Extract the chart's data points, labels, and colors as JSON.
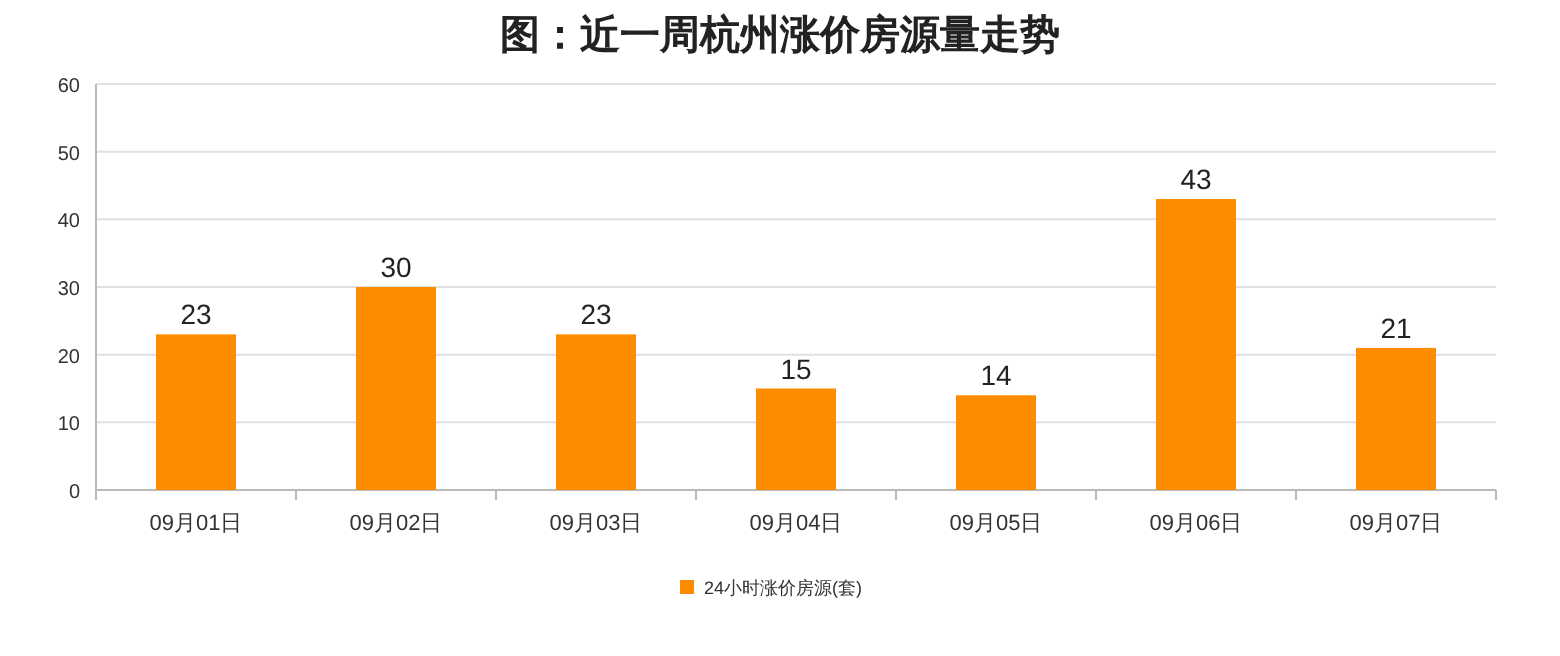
{
  "chart_data": {
    "type": "bar",
    "title": "图：近一周杭州涨价房源量走势",
    "categories": [
      "09月01日",
      "09月02日",
      "09月03日",
      "09月04日",
      "09月05日",
      "09月06日",
      "09月07日"
    ],
    "series": [
      {
        "name": "24小时涨价房源(套)",
        "color": "#ff8c00",
        "values": [
          23,
          30,
          23,
          15,
          14,
          43,
          21
        ]
      }
    ],
    "ylim": [
      0,
      60
    ],
    "yticks": [
      0,
      10,
      20,
      30,
      40,
      50,
      60
    ],
    "grid": "y",
    "legend": "bottom",
    "data_labels": true
  }
}
